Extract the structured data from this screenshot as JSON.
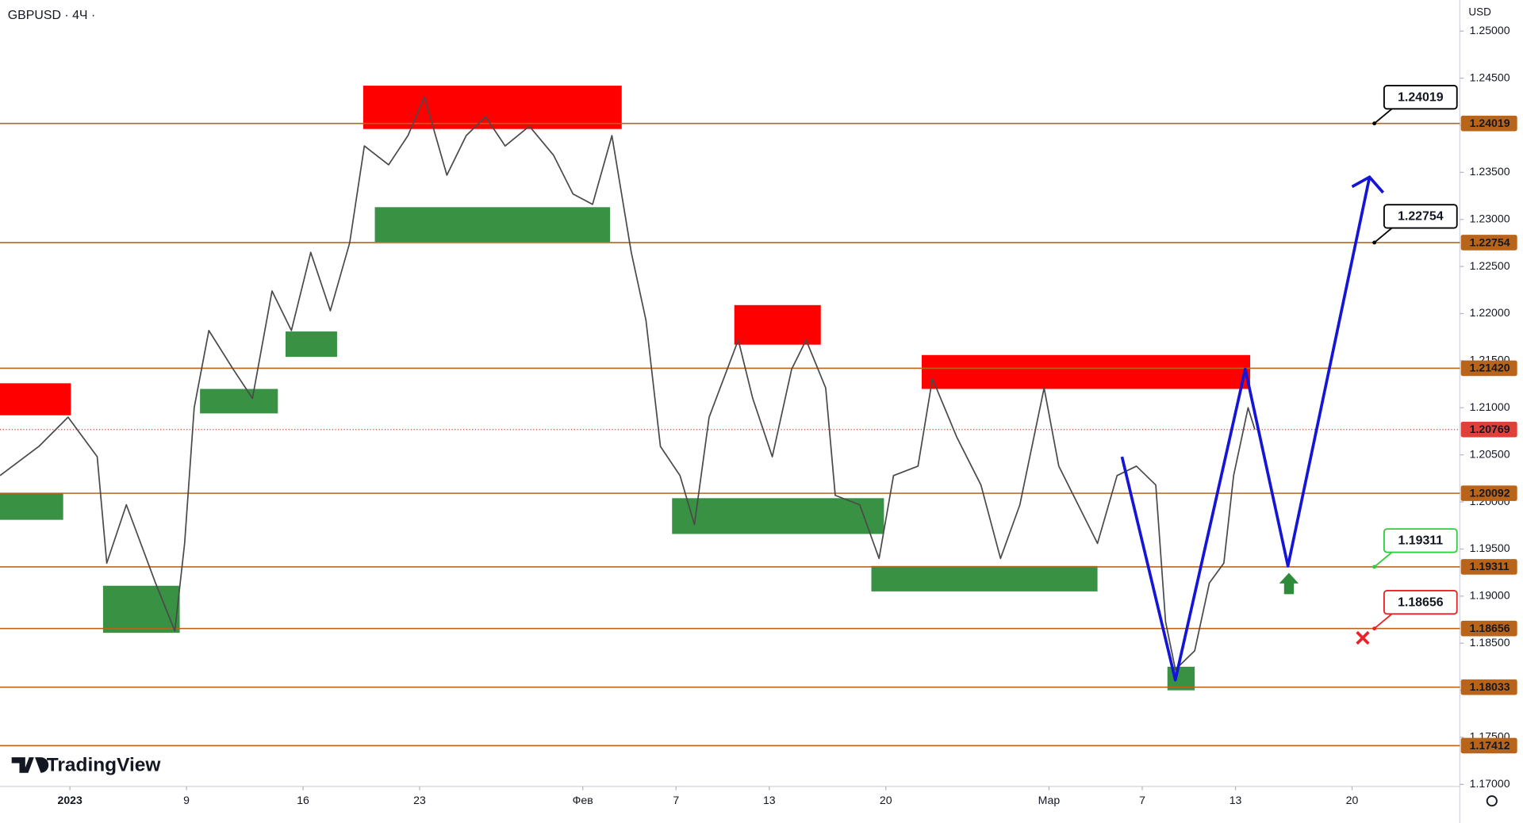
{
  "chart_data": {
    "type": "line",
    "title": "GBPUSD · 4Ч ·",
    "currency": "USD",
    "brand": "TradingView",
    "xlim": [
      -3,
      59.625
    ],
    "ylim": [
      1.17,
      1.25
    ],
    "yticks": [
      {
        "value": 1.17,
        "label": "1.17000"
      },
      {
        "value": 1.175,
        "label": "1.17500"
      },
      {
        "value": 1.18,
        "label": "1.18000"
      },
      {
        "value": 1.185,
        "label": "1.18500"
      },
      {
        "value": 1.19,
        "label": "1.19000"
      },
      {
        "value": 1.195,
        "label": "1.19500"
      },
      {
        "value": 1.2,
        "label": "1.20000"
      },
      {
        "value": 1.205,
        "label": "1.20500"
      },
      {
        "value": 1.21,
        "label": "1.21000"
      },
      {
        "value": 1.215,
        "label": "1.21500"
      },
      {
        "value": 1.22,
        "label": "1.22000"
      },
      {
        "value": 1.225,
        "label": "1.22500"
      },
      {
        "value": 1.23,
        "label": "1.23000"
      },
      {
        "value": 1.235,
        "label": "1.23500"
      },
      {
        "value": 1.24,
        "label": "1.24000"
      },
      {
        "value": 1.245,
        "label": "1.24500"
      },
      {
        "value": 1.25,
        "label": "1.25000"
      }
    ],
    "xticks": [
      {
        "value": 0,
        "label": "2023"
      },
      {
        "value": 5,
        "label": "9"
      },
      {
        "value": 10,
        "label": "16"
      },
      {
        "value": 15,
        "label": "23"
      },
      {
        "value": 22,
        "label": "Фев"
      },
      {
        "value": 26,
        "label": "7"
      },
      {
        "value": 30,
        "label": "13"
      },
      {
        "value": 35,
        "label": "20"
      },
      {
        "value": 42,
        "label": "Мар"
      },
      {
        "value": 46,
        "label": "7"
      },
      {
        "value": 50,
        "label": "13"
      },
      {
        "value": 55,
        "label": "20"
      }
    ],
    "series": [
      {
        "name": "GBPUSD",
        "color": "#4a4a4a",
        "x": [
          -3.0,
          -1.33,
          -0.08,
          1.17,
          1.58,
          2.42,
          3.67,
          4.5,
          4.92,
          5.33,
          5.96,
          7.0,
          7.83,
          8.67,
          9.5,
          10.33,
          11.17,
          12.0,
          12.63,
          13.67,
          14.5,
          15.21,
          16.17,
          17.0,
          17.83,
          18.67,
          19.71,
          20.75,
          21.58,
          22.42,
          23.25,
          24.08,
          24.71,
          25.33,
          26.17,
          26.79,
          27.42,
          28.67,
          29.29,
          30.13,
          30.96,
          31.58,
          32.42,
          32.83,
          33.88,
          34.71,
          35.33,
          36.38,
          37.0,
          38.04,
          39.08,
          39.92,
          40.75,
          41.79,
          42.42,
          43.25,
          44.08,
          44.92,
          45.75,
          46.58,
          47.0,
          47.42,
          48.25,
          48.88,
          49.5,
          49.92,
          50.54,
          50.83
        ],
        "values": [
          1.2028,
          1.2059,
          1.209,
          1.2048,
          1.1935,
          1.1997,
          1.1914,
          1.1863,
          1.1956,
          1.21,
          1.2182,
          1.2141,
          1.211,
          1.2224,
          1.2182,
          1.2265,
          1.2203,
          1.2275,
          1.2378,
          1.2358,
          1.2389,
          1.243,
          1.2347,
          1.2389,
          1.2409,
          1.2378,
          1.2399,
          1.2368,
          1.2327,
          1.2316,
          1.2389,
          1.2265,
          1.2193,
          1.2059,
          1.2028,
          1.1976,
          1.209,
          1.2172,
          1.211,
          1.2048,
          1.2141,
          1.2172,
          1.2121,
          1.2007,
          1.1997,
          1.194,
          1.2028,
          1.2038,
          1.2131,
          1.2069,
          1.2018,
          1.194,
          1.1997,
          1.2121,
          1.2038,
          1.1997,
          1.1956,
          1.2028,
          1.2038,
          1.2018,
          1.1873,
          1.1822,
          1.1842,
          1.1914,
          1.1935,
          1.2028,
          1.21,
          1.2077
        ]
      },
      {
        "name": "Projection",
        "color": "#1515d8",
        "x": [
          45.13,
          47.42,
          50.42,
          52.25,
          55.75
        ],
        "values": [
          1.2048,
          1.1811,
          1.2141,
          1.1932,
          1.2345
        ]
      }
    ],
    "zones": [
      {
        "color": "#ff0000",
        "x": [
          -3.0,
          0.04
        ],
        "values": [
          1.2126,
          1.2092
        ]
      },
      {
        "color": "#ff0000",
        "x": [
          12.58,
          23.67
        ],
        "values": [
          1.2442,
          1.2396
        ]
      },
      {
        "color": "#ff0000",
        "x": [
          28.5,
          32.21
        ],
        "values": [
          1.2209,
          1.2167
        ]
      },
      {
        "color": "#ff0000",
        "x": [
          36.54,
          50.63
        ],
        "values": [
          1.2156,
          1.212
        ]
      },
      {
        "color": "#2e8b3a",
        "x": [
          -3.0,
          -0.29
        ],
        "values": [
          1.2009,
          1.1981
        ]
      },
      {
        "color": "#2e8b3a",
        "x": [
          1.42,
          4.71
        ],
        "values": [
          1.1911,
          1.1861
        ]
      },
      {
        "color": "#2e8b3a",
        "x": [
          5.58,
          8.92
        ],
        "values": [
          1.212,
          1.2094
        ]
      },
      {
        "color": "#2e8b3a",
        "x": [
          9.25,
          11.46
        ],
        "values": [
          1.2181,
          1.2154
        ]
      },
      {
        "color": "#2e8b3a",
        "x": [
          13.08,
          23.17
        ],
        "values": [
          1.2313,
          1.2276
        ]
      },
      {
        "color": "#2e8b3a",
        "x": [
          25.83,
          34.92
        ],
        "values": [
          1.2004,
          1.1966
        ]
      },
      {
        "color": "#2e8b3a",
        "x": [
          34.38,
          44.08
        ],
        "values": [
          1.1932,
          1.1905
        ]
      },
      {
        "color": "#2e8b3a",
        "x": [
          47.08,
          48.25
        ],
        "values": [
          1.1825,
          1.18
        ]
      }
    ],
    "levels": [
      1.24019,
      1.22754,
      {
        "value": 1.2142,
        "label": "1.21420"
      },
      1.20092,
      1.19311,
      1.18656,
      1.18033,
      1.17412
    ],
    "level_color": "#b8651b",
    "last_price": 1.20769,
    "last_price_color": "#e0403a",
    "callouts": [
      {
        "value": 1.24019,
        "color": "#000000"
      },
      {
        "value": 1.22754,
        "color": "#000000"
      },
      {
        "value": 1.19311,
        "color": "#2ecc40"
      },
      {
        "value": 1.18656,
        "color": "#e8222a"
      }
    ]
  }
}
